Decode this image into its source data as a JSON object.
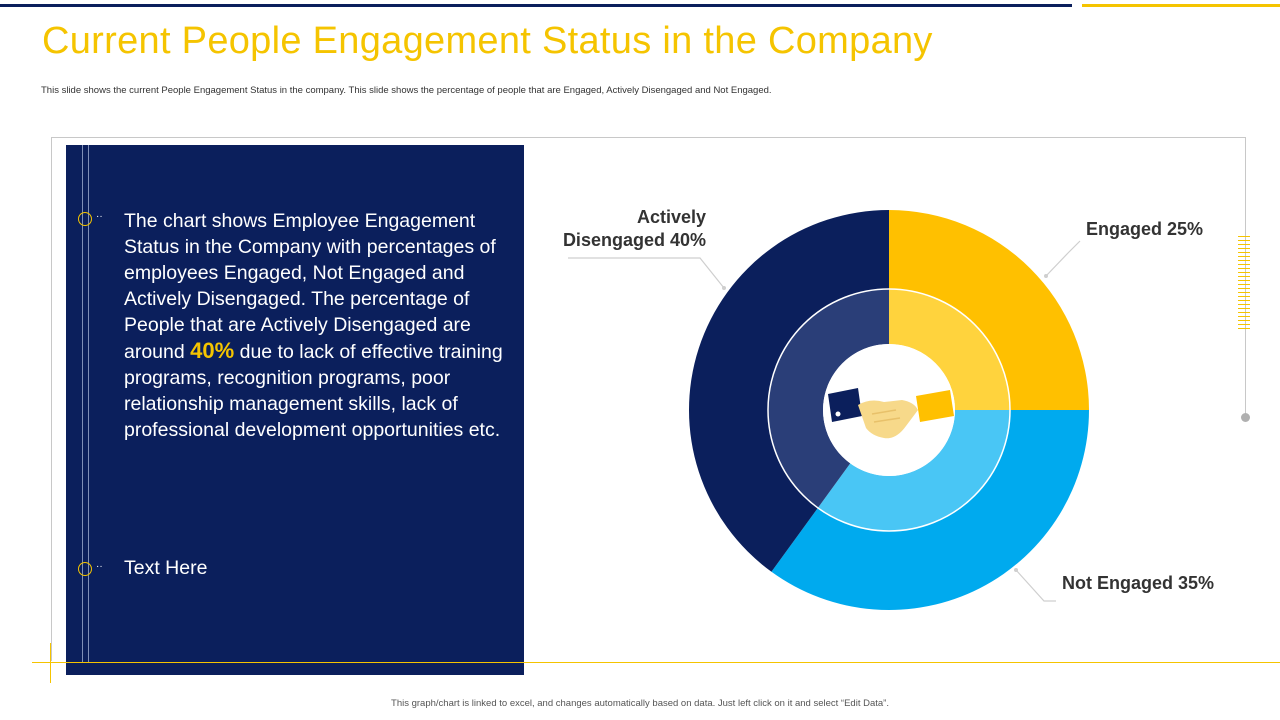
{
  "title": "Current People Engagement Status in the Company",
  "subtitle": "This slide shows the current People Engagement  Status in the company. This slide shows the percentage of people that are Engaged,  Actively Disengaged and Not Engaged.",
  "panel": {
    "description_before": "The chart shows Employee Engagement  Status in the Company with percentages of employees Engaged, Not Engaged and Actively Disengaged. The percentage of People that are Actively Disengaged are around",
    "highlight": "40%",
    "description_after": "due to lack of effective training programs, recognition programs, poor relationship management  skills, lack of professional development  opportunities etc.",
    "secondary_text": "Text Here"
  },
  "chart_data": {
    "type": "pie",
    "style": "donut",
    "title": "",
    "categories": [
      "Engaged",
      "Not Engaged",
      "Actively Disengaged"
    ],
    "values": [
      25,
      35,
      40
    ],
    "unit": "%",
    "labels": [
      "Engaged 25%",
      "Not Engaged 35%",
      "Actively Disengaged 40%"
    ],
    "label_lines": [
      [
        "Engaged 25%"
      ],
      [
        "Not Engaged 35%"
      ],
      [
        "Actively",
        "Disengaged 40%"
      ]
    ],
    "colors_outer": [
      "#ffc000",
      "#00aaee",
      "#0b1f5c"
    ],
    "colors_inner": [
      "#ffd33d",
      "#49c6f5",
      "#2a3e78"
    ],
    "center_icon": "handshake-icon"
  },
  "footnote": "This graph/chart is linked to excel, and changes automatically based on data. Just left click on it and select “Edit Data”.",
  "colors": {
    "accent": "#f5c400",
    "navy": "#0b1f5c"
  }
}
